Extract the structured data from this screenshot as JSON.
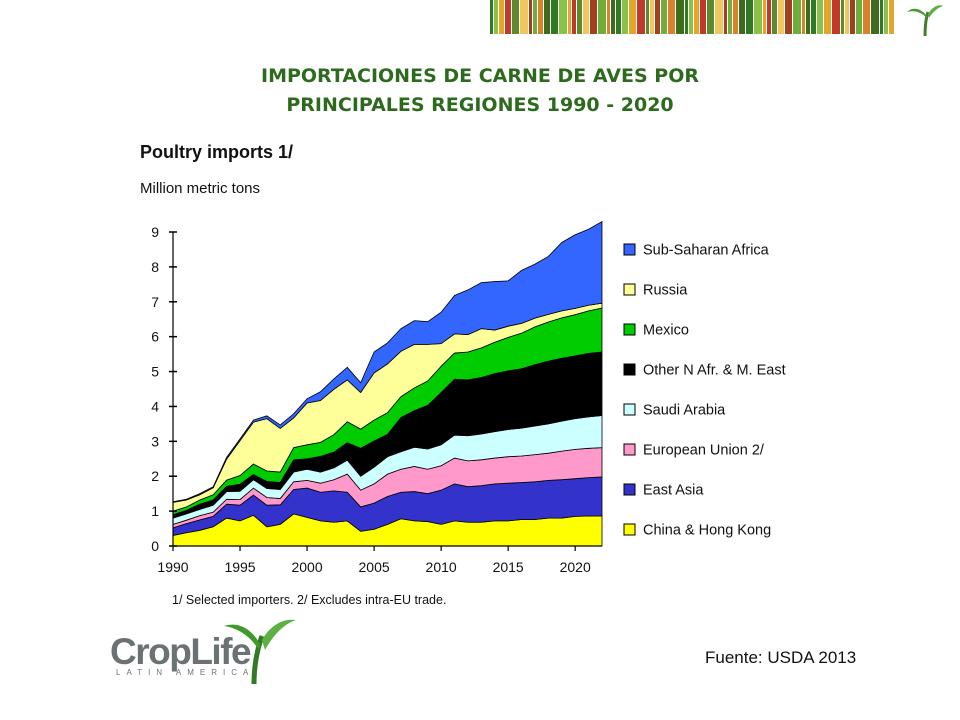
{
  "slide": {
    "title_line1": "IMPORTACIONES DE CARNE DE AVES POR",
    "title_line2": "PRINCIPALES REGIONES 1990 - 2020",
    "source": "Fuente: USDA 2013",
    "logo_word": "CropLife",
    "logo_sub": "LATIN AMERICA",
    "colors": {
      "title_green": "#2d6a1d",
      "logo_gray": "#6b7273"
    }
  },
  "chart_data": {
    "type": "area",
    "stacked": true,
    "title": "Poultry imports 1/",
    "units_label": "Million metric tons",
    "footnote": "1/ Selected importers.  2/ Excludes intra-EU trade.",
    "xlim": [
      1990,
      2022
    ],
    "ylim": [
      0,
      9
    ],
    "x_ticks": [
      1990,
      1995,
      2000,
      2005,
      2010,
      2015,
      2020
    ],
    "y_ticks": [
      0,
      1,
      2,
      3,
      4,
      5,
      6,
      7,
      8,
      9
    ],
    "legend_position": "right",
    "x": [
      1990,
      1991,
      1992,
      1993,
      1994,
      1995,
      1996,
      1997,
      1998,
      1999,
      2000,
      2001,
      2002,
      2003,
      2004,
      2005,
      2006,
      2007,
      2008,
      2009,
      2010,
      2011,
      2012,
      2013,
      2014,
      2015,
      2016,
      2017,
      2018,
      2019,
      2020,
      2021,
      2022
    ],
    "series": [
      {
        "name": "China & Hong Kong",
        "color": "#ffff00",
        "values": [
          0.3,
          0.38,
          0.45,
          0.55,
          0.8,
          0.72,
          0.88,
          0.55,
          0.62,
          0.92,
          0.82,
          0.72,
          0.68,
          0.72,
          0.42,
          0.48,
          0.62,
          0.78,
          0.72,
          0.7,
          0.62,
          0.72,
          0.68,
          0.68,
          0.72,
          0.72,
          0.76,
          0.76,
          0.8,
          0.8,
          0.85,
          0.86,
          0.86
        ]
      },
      {
        "name": "East Asia",
        "color": "#3333cc",
        "values": [
          0.22,
          0.26,
          0.3,
          0.3,
          0.4,
          0.45,
          0.58,
          0.62,
          0.56,
          0.7,
          0.84,
          0.82,
          0.9,
          0.82,
          0.7,
          0.75,
          0.8,
          0.76,
          0.84,
          0.8,
          0.98,
          1.06,
          1.02,
          1.05,
          1.06,
          1.08,
          1.06,
          1.08,
          1.08,
          1.1,
          1.08,
          1.1,
          1.12
        ]
      },
      {
        "name": "European Union 2/",
        "color": "#ff99cc",
        "values": [
          0.1,
          0.1,
          0.12,
          0.12,
          0.14,
          0.16,
          0.2,
          0.22,
          0.18,
          0.22,
          0.22,
          0.26,
          0.32,
          0.52,
          0.48,
          0.55,
          0.64,
          0.66,
          0.72,
          0.7,
          0.7,
          0.74,
          0.74,
          0.74,
          0.74,
          0.76,
          0.76,
          0.78,
          0.78,
          0.82,
          0.84,
          0.84,
          0.84
        ]
      },
      {
        "name": "Saudi Arabia",
        "color": "#ccffff",
        "values": [
          0.18,
          0.18,
          0.18,
          0.2,
          0.22,
          0.24,
          0.24,
          0.26,
          0.26,
          0.28,
          0.32,
          0.32,
          0.34,
          0.4,
          0.4,
          0.48,
          0.5,
          0.5,
          0.55,
          0.58,
          0.6,
          0.66,
          0.72,
          0.74,
          0.76,
          0.78,
          0.8,
          0.82,
          0.84,
          0.86,
          0.88,
          0.9,
          0.92
        ]
      },
      {
        "name": "Other N Afr. & M. East",
        "color": "#000000",
        "values": [
          0.1,
          0.1,
          0.15,
          0.15,
          0.15,
          0.2,
          0.15,
          0.2,
          0.2,
          0.35,
          0.3,
          0.45,
          0.45,
          0.5,
          0.8,
          0.75,
          0.64,
          0.98,
          1.05,
          1.25,
          1.5,
          1.6,
          1.6,
          1.62,
          1.66,
          1.68,
          1.7,
          1.76,
          1.8,
          1.8,
          1.8,
          1.82,
          1.82
        ]
      },
      {
        "name": "Mexico",
        "color": "#00cc00",
        "values": [
          0.1,
          0.1,
          0.12,
          0.15,
          0.18,
          0.25,
          0.3,
          0.3,
          0.3,
          0.35,
          0.4,
          0.4,
          0.5,
          0.6,
          0.55,
          0.6,
          0.62,
          0.6,
          0.65,
          0.7,
          0.75,
          0.75,
          0.8,
          0.85,
          0.9,
          0.96,
          1.02,
          1.08,
          1.12,
          1.16,
          1.18,
          1.22,
          1.26
        ]
      },
      {
        "name": "Russia",
        "color": "#ffff99",
        "values": [
          0.25,
          0.2,
          0.15,
          0.2,
          0.6,
          1.0,
          1.2,
          1.5,
          1.25,
          0.85,
          1.2,
          1.2,
          1.3,
          1.2,
          1.05,
          1.35,
          1.4,
          1.3,
          1.25,
          1.05,
          0.65,
          0.55,
          0.5,
          0.55,
          0.35,
          0.32,
          0.28,
          0.25,
          0.22,
          0.2,
          0.18,
          0.16,
          0.14
        ]
      },
      {
        "name": "Sub-Saharan Africa",
        "color": "#3366ff",
        "values": [
          0.02,
          0.02,
          0.03,
          0.03,
          0.05,
          0.05,
          0.06,
          0.08,
          0.1,
          0.12,
          0.12,
          0.25,
          0.3,
          0.36,
          0.28,
          0.6,
          0.6,
          0.65,
          0.68,
          0.65,
          0.9,
          1.1,
          1.28,
          1.32,
          1.39,
          1.3,
          1.52,
          1.55,
          1.66,
          1.96,
          2.11,
          2.18,
          2.34
        ]
      }
    ]
  }
}
